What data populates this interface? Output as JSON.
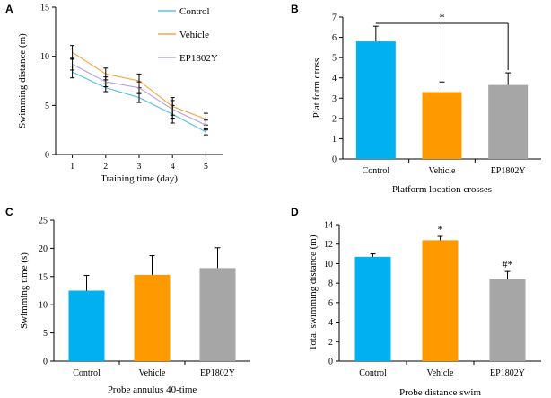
{
  "chart_data": [
    {
      "panel": "A",
      "type": "line",
      "xlabel": "Training time (day)",
      "ylabel": "Swimming distance (m)",
      "x": [
        1,
        2,
        3,
        4,
        5
      ],
      "x_ticks": [
        "1",
        "2",
        "3",
        "4",
        "5"
      ],
      "xlim": [
        0.5,
        5.5
      ],
      "ylim": [
        0,
        15
      ],
      "y_ticks": [
        "0",
        "5",
        "10",
        "15"
      ],
      "legend": "top-right",
      "series": [
        {
          "name": "Control",
          "values": [
            8.4,
            6.8,
            5.8,
            4.1,
            2.3
          ],
          "errors": [
            0.6,
            0.4,
            0.5,
            0.9,
            0.3
          ],
          "color": "#5fc2e8"
        },
        {
          "name": "Vehicle",
          "values": [
            10.4,
            8.2,
            7.5,
            4.9,
            3.6
          ],
          "errors": [
            0.7,
            0.6,
            0.7,
            0.9,
            0.6
          ],
          "color": "#f5a94a"
        },
        {
          "name": "EP1802Y",
          "values": [
            9.2,
            7.4,
            6.8,
            4.6,
            3.0
          ],
          "errors": [
            0.6,
            0.5,
            0.6,
            0.9,
            0.5
          ],
          "color": "#b9a7d9"
        }
      ]
    },
    {
      "panel": "B",
      "type": "bar",
      "xlabel": "Platform location crosses",
      "ylabel": "Plat form cross",
      "categories": [
        "Control",
        "Vehicle",
        "EP1802Y"
      ],
      "values": [
        5.8,
        3.3,
        3.65
      ],
      "errors": [
        0.75,
        0.5,
        0.6
      ],
      "colors": [
        "#00b0f0",
        "#ff9900",
        "#a6a6a6"
      ],
      "ylim": [
        0,
        7
      ],
      "y_ticks": [
        "0",
        "1",
        "2",
        "3",
        "4",
        "5",
        "6",
        "7"
      ],
      "significance": {
        "label": "*",
        "groups": [
          "Control",
          "Vehicle",
          "EP1802Y"
        ]
      }
    },
    {
      "panel": "C",
      "type": "bar",
      "xlabel": "Probe annulus 40-time",
      "ylabel": "Swimming time (s)",
      "categories": [
        "Control",
        "Vehicle",
        "EP1802Y"
      ],
      "values": [
        12.5,
        15.3,
        16.5
      ],
      "errors": [
        2.7,
        3.4,
        3.6
      ],
      "colors": [
        "#00b0f0",
        "#ff9900",
        "#a6a6a6"
      ],
      "ylim": [
        0,
        25
      ],
      "y_ticks": [
        "0",
        "5",
        "10",
        "15",
        "20",
        "25"
      ]
    },
    {
      "panel": "D",
      "type": "bar",
      "xlabel": "Probe distance swim",
      "ylabel": "Total swimming distance (m)",
      "categories": [
        "Control",
        "Vehicle",
        "EP1802Y"
      ],
      "values": [
        10.7,
        12.4,
        8.4
      ],
      "errors": [
        0.3,
        0.4,
        0.8
      ],
      "colors": [
        "#00b0f0",
        "#ff9900",
        "#a6a6a6"
      ],
      "ylim": [
        0,
        14
      ],
      "y_ticks": [
        "0",
        "2",
        "4",
        "6",
        "8",
        "10",
        "12",
        "14"
      ],
      "bar_annotations": [
        "",
        "*",
        "#*"
      ]
    }
  ]
}
